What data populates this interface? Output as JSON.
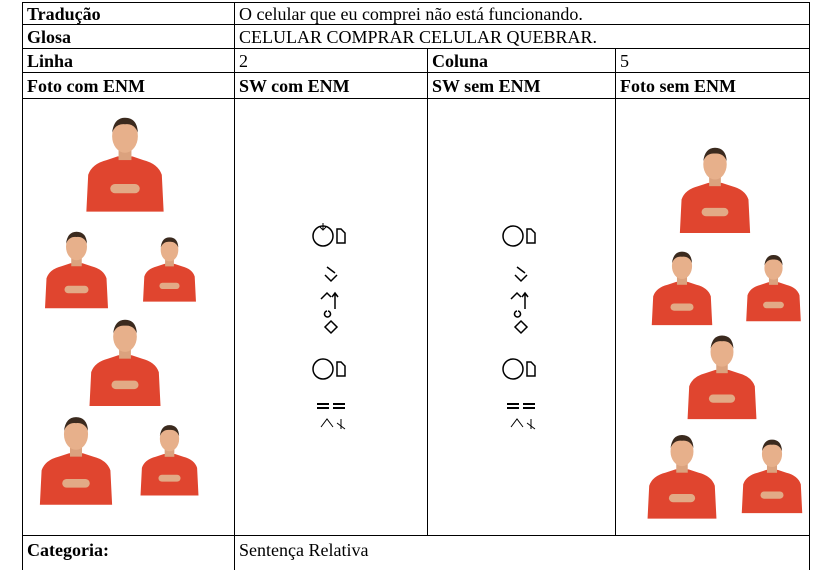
{
  "table": {
    "rows": [
      [
        "Tradução",
        "O celular que eu comprei não está funcionando."
      ],
      [
        "Glosa",
        "CELULAR COMPRAR CELULAR QUEBRAR."
      ],
      [
        "Linha",
        "2",
        "Coluna",
        "5"
      ],
      [
        "Foto com ENM",
        "SW com ENM",
        "SW sem ENM",
        "Foto sem ENM"
      ],
      [
        "Categoria:",
        "Sentença Relativa"
      ]
    ]
  }
}
